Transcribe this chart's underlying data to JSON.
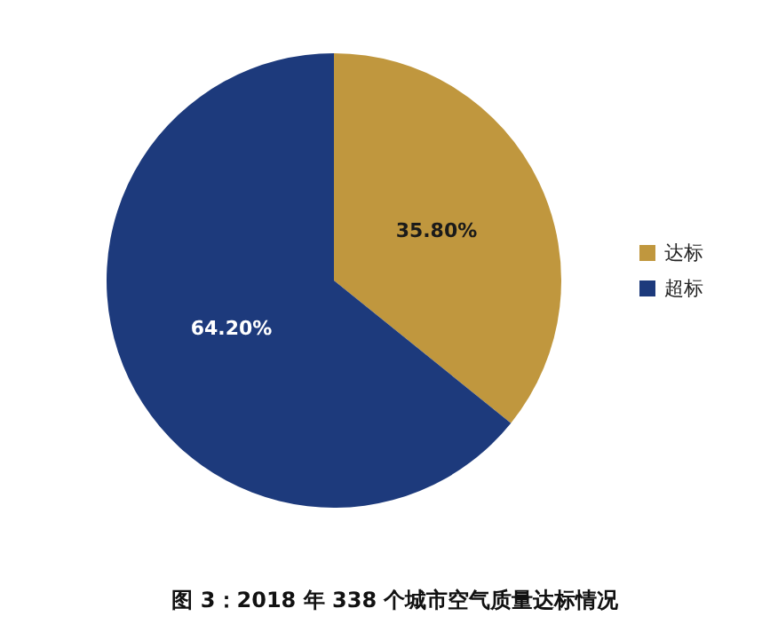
{
  "chart_data": {
    "type": "pie",
    "title": "图 3：2018 年 338 个城市空气质量达标情况",
    "categories": [
      "达标",
      "超标"
    ],
    "values": [
      35.8,
      64.2
    ],
    "colors": [
      "#c0973e",
      "#1d3a7c"
    ],
    "value_labels": [
      "35.80%",
      "64.20%"
    ],
    "legend": "right"
  }
}
